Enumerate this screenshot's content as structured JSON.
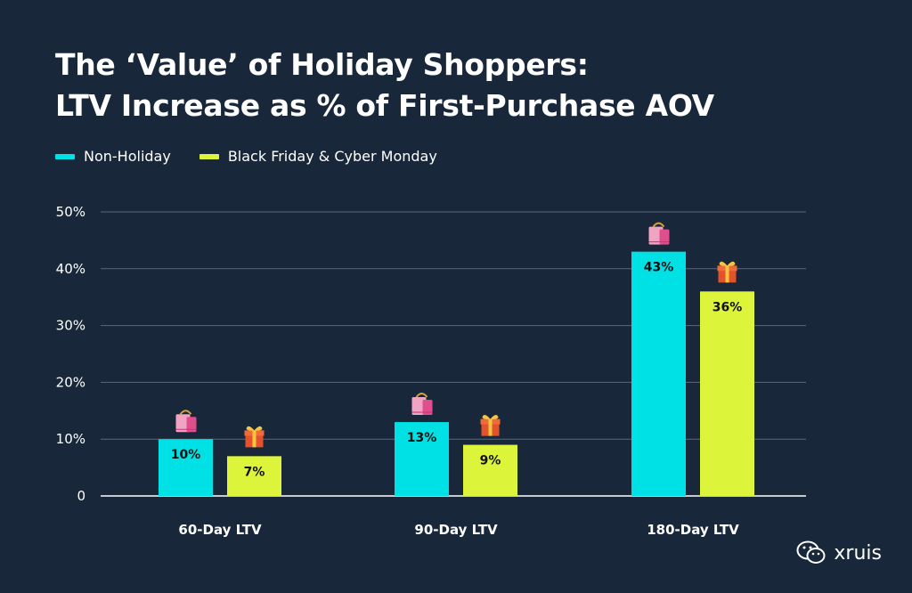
{
  "title": {
    "line1": "The ‘Value’ of Holiday Shoppers:",
    "line2": "LTV Increase as % of First-Purchase AOV"
  },
  "legend": [
    {
      "label": "Non-Holiday",
      "color": "#00e1e6"
    },
    {
      "label": "Black Friday & Cyber Monday",
      "color": "#dcf53a"
    }
  ],
  "watermark": {
    "text": "xruis",
    "icon": "wechat-icon"
  },
  "chart_data": {
    "type": "bar",
    "title": "The ‘Value’ of Holiday Shoppers: LTV Increase as % of First-Purchase AOV",
    "categories": [
      "60-Day LTV",
      "90-Day LTV",
      "180-Day LTV"
    ],
    "series": [
      {
        "name": "Non-Holiday",
        "values": [
          10,
          13,
          43
        ],
        "labels": [
          "10%",
          "13%",
          "43%"
        ],
        "color": "#00e1e6",
        "icon": "shopping-bag-icon"
      },
      {
        "name": "Black Friday & Cyber Monday",
        "values": [
          7,
          9,
          36
        ],
        "labels": [
          "7%",
          "9%",
          "36%"
        ],
        "color": "#dcf53a",
        "icon": "gift-icon"
      }
    ],
    "y_ticks": [
      0,
      10,
      20,
      30,
      40,
      50
    ],
    "y_tick_labels": [
      "0",
      "10%",
      "20%",
      "30%",
      "40%",
      "50%"
    ],
    "ylim": [
      0,
      50
    ],
    "xlabel": "",
    "ylabel": "",
    "grid": true,
    "legend_position": "top-left"
  }
}
